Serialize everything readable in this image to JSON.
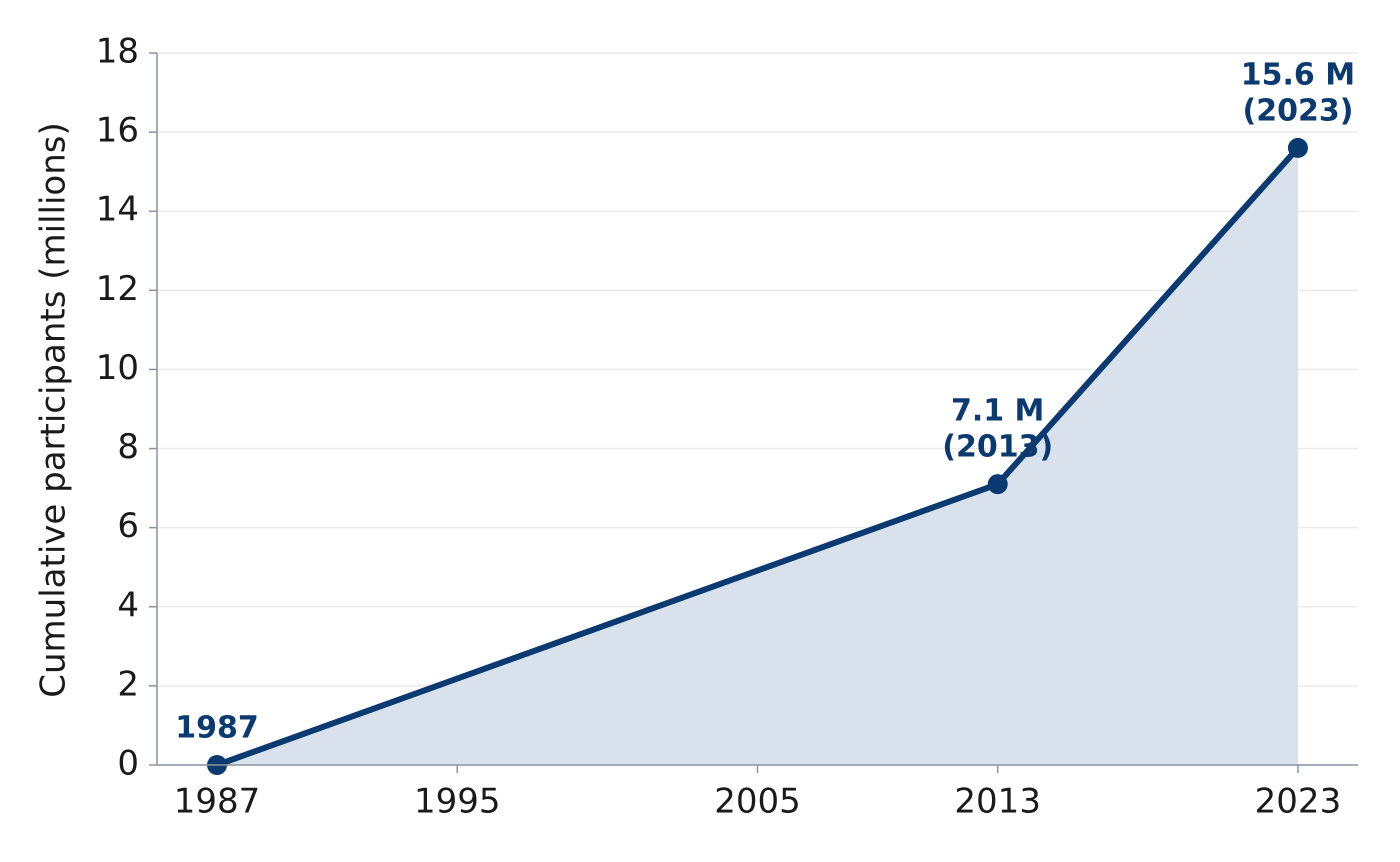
{
  "chart_data": {
    "type": "line",
    "y_label": "Cumulative participants (millions)",
    "x": [
      1987,
      2013,
      2023
    ],
    "series": [
      {
        "name": "Cumulative participants",
        "color": "#0b3a70",
        "values": [
          0,
          7.1,
          15.6
        ]
      }
    ],
    "fill_color": "#d8e1ec",
    "annotations": [
      [
        "1987"
      ],
      [
        "7.1 M",
        "(2013)"
      ],
      [
        "15.6 M",
        "(2023)"
      ]
    ],
    "xlim": [
      1985,
      2025
    ],
    "xticks": [
      1987,
      1995,
      2005,
      2013,
      2023
    ],
    "ylim": [
      0,
      18
    ],
    "yticks": [
      0,
      2,
      4,
      6,
      8,
      10,
      12,
      14,
      16,
      18
    ],
    "grid": true,
    "legend": false
  }
}
